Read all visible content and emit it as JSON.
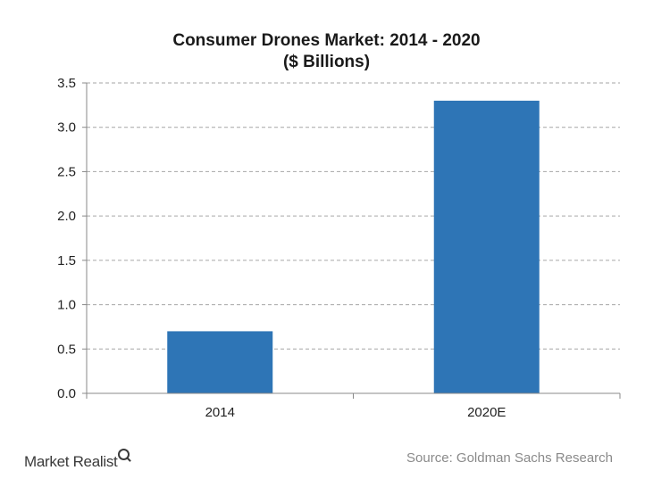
{
  "chart_data": {
    "type": "bar",
    "title": "Consumer Drones Market: 2014 - 2020",
    "subtitle": "($ Billions)",
    "categories": [
      "2014",
      "2020E"
    ],
    "values": [
      0.7,
      3.3
    ],
    "ylim": [
      0,
      3.5
    ],
    "yticks": [
      "0.0",
      "0.5",
      "1.0",
      "1.5",
      "2.0",
      "2.5",
      "3.0",
      "3.5"
    ],
    "grid": true,
    "bar_color": "#2E75B6",
    "grid_color": "#a6a6a6"
  },
  "footer": {
    "brand": "Market Realist",
    "source": "Source: Goldman Sachs Research"
  }
}
